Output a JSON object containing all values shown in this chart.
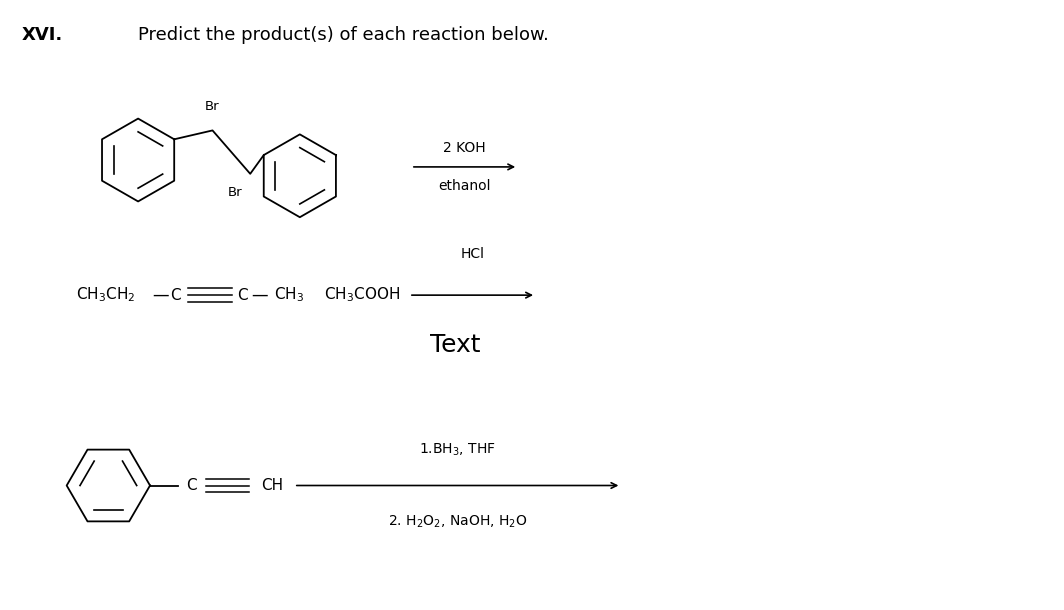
{
  "title_roman": "XVI.",
  "title_text": "Predict the product(s) of each reaction below.",
  "background_color": "#ffffff",
  "text_color": "#000000",
  "figsize": [
    10.64,
    6.1
  ],
  "dpi": 100,
  "rxn1_reagent_above": "2 KOH",
  "rxn1_reagent_below": "ethanol",
  "rxn2_reagent_above": "HCl",
  "rxn3_reagent_above": "1.BH$_3$, THF",
  "rxn3_reagent_below": "2. H$_2$O$_2$, NaOH, H$_2$O"
}
